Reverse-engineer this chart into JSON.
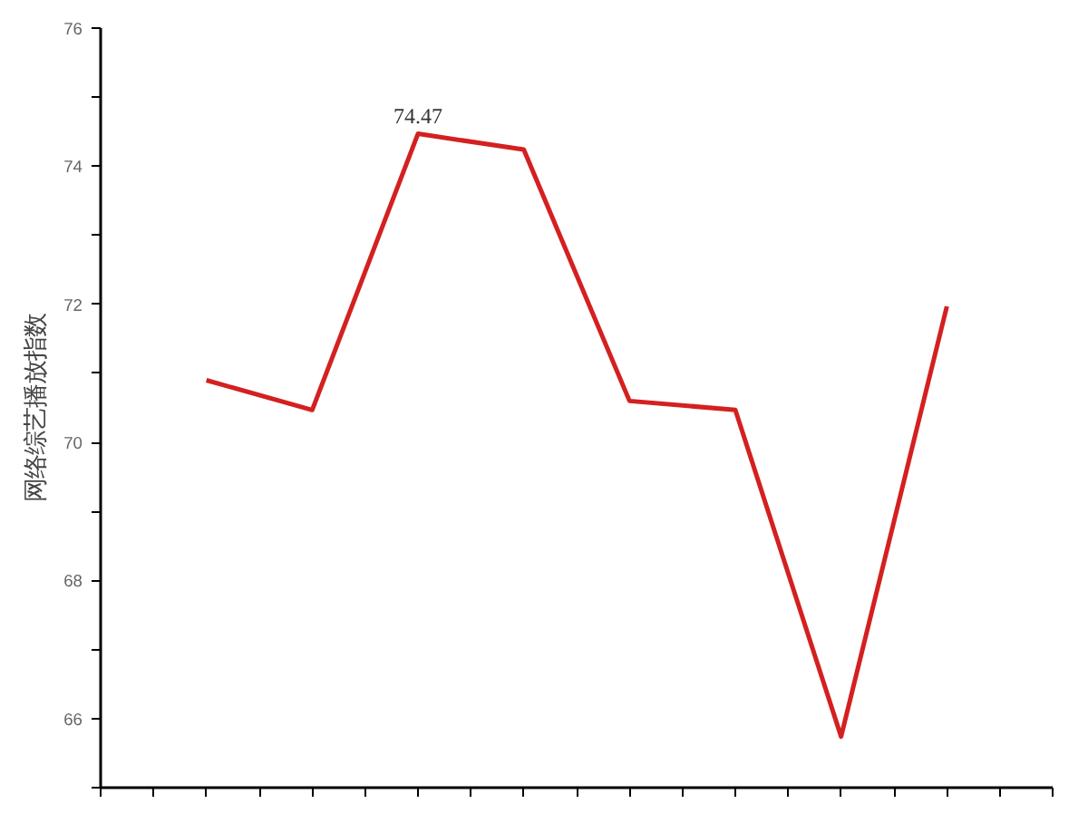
{
  "chart_data": {
    "type": "line",
    "ylabel": "网络综艺播放指数",
    "categories": [
      null,
      null,
      null,
      null,
      null,
      null,
      null,
      null
    ],
    "series": [
      {
        "color": "#d42020",
        "values": [
          70.9,
          70.47,
          74.47,
          74.24,
          70.6,
          70.47,
          65.74,
          71.97
        ],
        "value_labels": [
          null,
          null,
          "74.47",
          null,
          null,
          null,
          null,
          null
        ]
      }
    ],
    "ylim": [
      65,
      76
    ],
    "yticks": [
      {
        "value": 65,
        "label": null
      },
      66,
      {
        "value": 67,
        "label": null
      },
      68,
      {
        "value": 69,
        "label": null
      },
      70,
      {
        "value": 71,
        "label": null
      },
      72,
      {
        "value": 73,
        "label": null
      },
      74,
      {
        "value": 75,
        "label": null
      },
      76
    ],
    "grid": false,
    "marker": "none",
    "line_style": "solid"
  }
}
